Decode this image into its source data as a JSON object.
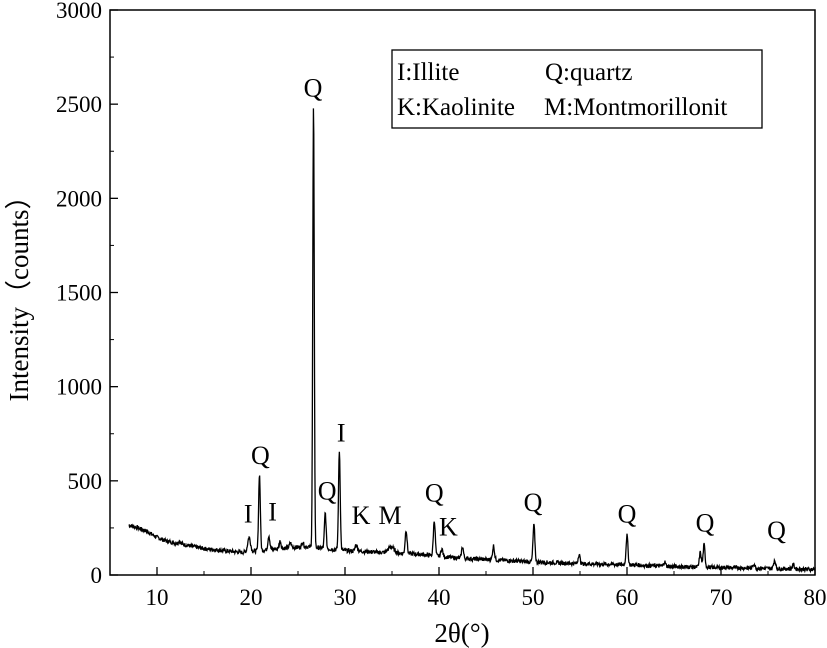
{
  "chart_data": {
    "type": "line",
    "xlabel": "2θ(°)",
    "ylabel": "Intensity（counts）",
    "xlim": [
      5,
      80
    ],
    "ylim": [
      0,
      3000
    ],
    "x_ticks": [
      10,
      20,
      30,
      40,
      50,
      60,
      70,
      80
    ],
    "y_ticks": [
      0,
      500,
      1000,
      1500,
      2000,
      2500,
      3000
    ],
    "grid": false,
    "legend": {
      "placement": "top-right",
      "entries": [
        "I:Illite",
        "Q:quartz",
        "K:Kaolinite",
        "M:Montmorillonit"
      ]
    },
    "line_color": "#000000",
    "baseline_points": [
      [
        7.0,
        265
      ],
      [
        8.0,
        250
      ],
      [
        9.0,
        230
      ],
      [
        10.0,
        200
      ],
      [
        11.0,
        180
      ],
      [
        12.0,
        170
      ],
      [
        13.0,
        160
      ],
      [
        14.0,
        150
      ],
      [
        15.0,
        140
      ],
      [
        16.0,
        135
      ],
      [
        17.0,
        130
      ],
      [
        18.0,
        125
      ],
      [
        19.0,
        120
      ],
      [
        20.0,
        125
      ],
      [
        22.0,
        135
      ],
      [
        24.0,
        145
      ],
      [
        26.0,
        150
      ],
      [
        28.0,
        140
      ],
      [
        30.0,
        130
      ],
      [
        32.0,
        125
      ],
      [
        34.0,
        120
      ],
      [
        36.0,
        115
      ],
      [
        38.0,
        110
      ],
      [
        40.0,
        100
      ],
      [
        42.0,
        90
      ],
      [
        44.0,
        85
      ],
      [
        46.0,
        80
      ],
      [
        48.0,
        75
      ],
      [
        50.0,
        70
      ],
      [
        55.0,
        60
      ],
      [
        60.0,
        55
      ],
      [
        65.0,
        45
      ],
      [
        70.0,
        40
      ],
      [
        75.0,
        35
      ],
      [
        80.0,
        30
      ]
    ],
    "peaks": [
      {
        "x": 12.4,
        "y": 180,
        "w": 0.12
      },
      {
        "x": 19.8,
        "y": 200,
        "w": 0.15
      },
      {
        "x": 20.9,
        "y": 535,
        "w": 0.09
      },
      {
        "x": 21.9,
        "y": 210,
        "w": 0.1
      },
      {
        "x": 23.1,
        "y": 180,
        "w": 0.1
      },
      {
        "x": 24.2,
        "y": 170,
        "w": 0.1
      },
      {
        "x": 25.5,
        "y": 175,
        "w": 0.1
      },
      {
        "x": 26.65,
        "y": 2490,
        "w": 0.08
      },
      {
        "x": 27.9,
        "y": 330,
        "w": 0.09
      },
      {
        "x": 29.4,
        "y": 660,
        "w": 0.09
      },
      {
        "x": 31.2,
        "y": 160,
        "w": 0.12
      },
      {
        "x": 34.9,
        "y": 150,
        "w": 0.3
      },
      {
        "x": 36.5,
        "y": 240,
        "w": 0.1
      },
      {
        "x": 39.5,
        "y": 290,
        "w": 0.1
      },
      {
        "x": 40.3,
        "y": 140,
        "w": 0.1
      },
      {
        "x": 42.5,
        "y": 150,
        "w": 0.1
      },
      {
        "x": 45.8,
        "y": 155,
        "w": 0.1
      },
      {
        "x": 50.1,
        "y": 265,
        "w": 0.1
      },
      {
        "x": 54.9,
        "y": 110,
        "w": 0.1
      },
      {
        "x": 60.0,
        "y": 210,
        "w": 0.1
      },
      {
        "x": 64.0,
        "y": 70,
        "w": 0.1
      },
      {
        "x": 67.8,
        "y": 120,
        "w": 0.1
      },
      {
        "x": 68.2,
        "y": 160,
        "w": 0.1
      },
      {
        "x": 73.5,
        "y": 60,
        "w": 0.1
      },
      {
        "x": 75.7,
        "y": 80,
        "w": 0.1
      },
      {
        "x": 77.7,
        "y": 55,
        "w": 0.1
      }
    ],
    "annotations": [
      {
        "text": "Q",
        "x": 21.0,
        "y": 590
      },
      {
        "text": "I",
        "x": 19.7,
        "y": 280
      },
      {
        "text": "I",
        "x": 22.3,
        "y": 290
      },
      {
        "text": "Q",
        "x": 26.6,
        "y": 2540
      },
      {
        "text": "Q",
        "x": 28.1,
        "y": 400
      },
      {
        "text": "I",
        "x": 29.6,
        "y": 710
      },
      {
        "text": "K",
        "x": 31.7,
        "y": 270
      },
      {
        "text": "M",
        "x": 34.8,
        "y": 270
      },
      {
        "text": "Q",
        "x": 39.5,
        "y": 390
      },
      {
        "text": "K",
        "x": 41.0,
        "y": 210
      },
      {
        "text": "Q",
        "x": 50.0,
        "y": 340
      },
      {
        "text": "Q",
        "x": 60.0,
        "y": 280
      },
      {
        "text": "Q",
        "x": 68.3,
        "y": 230
      },
      {
        "text": "Q",
        "x": 75.9,
        "y": 190
      }
    ]
  }
}
